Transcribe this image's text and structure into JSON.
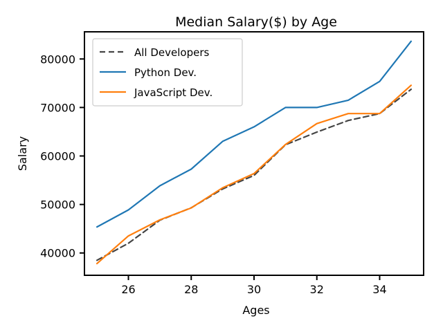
{
  "chart_data": {
    "type": "line",
    "title": "Median Salary($) by Age",
    "xlabel": "Ages",
    "ylabel": "Salary",
    "xlim": [
      24.6,
      35.4
    ],
    "ylim": [
      35400,
      85600
    ],
    "x_ticks": [
      26,
      28,
      30,
      32,
      34
    ],
    "y_ticks": [
      40000,
      50000,
      60000,
      70000,
      80000
    ],
    "grid": false,
    "legend_position": "top-left",
    "x": [
      25,
      26,
      27,
      28,
      29,
      30,
      31,
      32,
      33,
      34,
      35
    ],
    "series": [
      {
        "name": "All Developers",
        "color": "#444444",
        "style": "dashed",
        "values": [
          38496,
          42000,
          46752,
          49320,
          53200,
          56000,
          62316,
          64928,
          67317,
          68748,
          73752
        ]
      },
      {
        "name": "Python Dev.",
        "color": "#1f77b4",
        "style": "solid",
        "values": [
          45372,
          48876,
          53850,
          57287,
          63016,
          65998,
          70003,
          70000,
          71496,
          75370,
          83640
        ]
      },
      {
        "name": "JavaScript Dev.",
        "color": "#ff7f0e",
        "style": "solid",
        "values": [
          37810,
          43515,
          46823,
          49293,
          53437,
          56373,
          62375,
          66674,
          68745,
          68746,
          74583
        ]
      }
    ]
  }
}
